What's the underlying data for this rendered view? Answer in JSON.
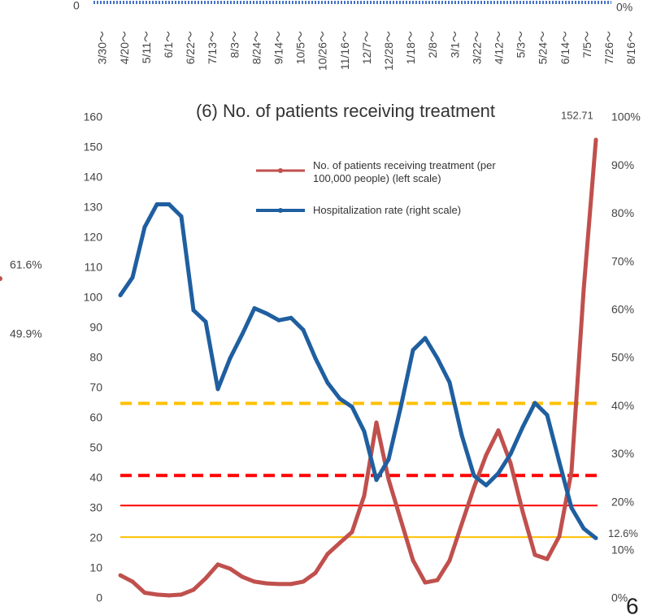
{
  "chart_data": [
    {
      "type": "bar",
      "categories": [
        "3/30～",
        "4/20～",
        "5/11～",
        "6/1～",
        "6/22～",
        "7/13～",
        "8/3～",
        "8/24～",
        "9/14～",
        "10/5～",
        "10/26～",
        "11/16～",
        "12/7～",
        "12/28～",
        "1/18～",
        "2/8～",
        "3/1～",
        "3/22～",
        "4/12～",
        "5/3～",
        "5/24～",
        "6/14～",
        "7/5～",
        "7/26～",
        "8/16～"
      ],
      "yticks": [
        0
      ],
      "y2ticks": [
        {
          "value": 0,
          "label": "0%"
        }
      ],
      "color": "#4472c4"
    },
    {
      "type": "line",
      "title": "(6) No. of patients receiving treatment",
      "ylim": [
        0,
        160
      ],
      "yticks": [
        0,
        10,
        20,
        30,
        40,
        50,
        60,
        70,
        80,
        90,
        100,
        110,
        120,
        130,
        140,
        150,
        160
      ],
      "y2lim": [
        0,
        100
      ],
      "y2ticks": [
        {
          "value": 0,
          "label": "0%"
        },
        {
          "value": 10,
          "label": "10%"
        },
        {
          "value": 20,
          "label": "20%"
        },
        {
          "value": 30,
          "label": "30%"
        },
        {
          "value": 40,
          "label": "40%"
        },
        {
          "value": 50,
          "label": "50%"
        },
        {
          "value": 60,
          "label": "60%"
        },
        {
          "value": 70,
          "label": "70%"
        },
        {
          "value": 80,
          "label": "80%"
        },
        {
          "value": 90,
          "label": "90%"
        },
        {
          "value": 100,
          "label": "100%"
        }
      ],
      "reference_lines": [
        {
          "value": 65,
          "color": "#ffc000",
          "style": "dashed"
        },
        {
          "value": 41,
          "color": "#ff0000",
          "style": "dashed"
        },
        {
          "value": 31,
          "color": "#ff0000",
          "style": "solid"
        },
        {
          "value": 20.5,
          "color": "#ffc000",
          "style": "solid"
        }
      ],
      "series": [
        {
          "name": "No. of patients receiving treatment (per 100,000 people) (left scale)",
          "color": "#c0504d",
          "values": [
            7.8,
            5.7,
            2,
            1.4,
            1.1,
            1.4,
            3,
            6.8,
            11.4,
            10,
            7.3,
            5.7,
            5.1,
            4.9,
            4.9,
            5.7,
            8.6,
            14.9,
            18.6,
            22.2,
            34.3,
            58.6,
            39.7,
            26.2,
            12.8,
            5.4,
            6.2,
            12.7,
            24.9,
            37,
            47.8,
            56,
            45.1,
            28.9,
            14.6,
            13.2,
            20.8,
            42.4,
            103,
            152.71
          ]
        },
        {
          "name": "Hospitalization rate (right scale)",
          "color": "#1f5fa0",
          "axis": "y2",
          "values": [
            63.1,
            66.8,
            77.3,
            82,
            82,
            79.5,
            60,
            57.6,
            43.6,
            50,
            55,
            60.4,
            59.3,
            57.9,
            58.4,
            55.9,
            50,
            44.9,
            41.6,
            39.9,
            34.8,
            24.7,
            29,
            39.9,
            51.7,
            54.2,
            50,
            45,
            34,
            25.6,
            23.6,
            26.1,
            30.1,
            35.7,
            40.7,
            38.2,
            28.4,
            18.9,
            14.6,
            12.6
          ],
          "value_labels": [
            null,
            null,
            null,
            null,
            null,
            null,
            null,
            null,
            null,
            null,
            null,
            null,
            null,
            null,
            null,
            null,
            null,
            null,
            null,
            null,
            null,
            null,
            null,
            null,
            null,
            null,
            null,
            null,
            null,
            null,
            null,
            null,
            null,
            null,
            null,
            null,
            null,
            null,
            null,
            "12.6%"
          ]
        }
      ]
    }
  ],
  "side_labels": [
    "61.6%",
    "49.9%"
  ],
  "page_number": "6"
}
